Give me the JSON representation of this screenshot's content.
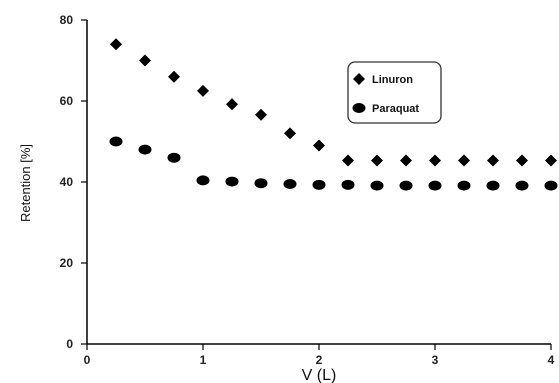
{
  "chart_data": {
    "type": "scatter",
    "xlabel": "V (L)",
    "ylabel": "Retention [%]",
    "xlim": [
      0,
      4
    ],
    "ylim": [
      0,
      80
    ],
    "xticks": [
      0,
      1,
      2,
      3,
      4
    ],
    "yticks": [
      0,
      20,
      40,
      60,
      80
    ],
    "grid": false,
    "legend": "top-right",
    "series": [
      {
        "name": "Linuron",
        "marker": "diamond",
        "color": "#000000",
        "x": [
          0.25,
          0.5,
          0.75,
          1.0,
          1.25,
          1.5,
          1.75,
          2.0,
          2.25,
          2.5,
          2.75,
          3.0,
          3.25,
          3.5,
          3.75,
          4.0
        ],
        "y": [
          74,
          70,
          66,
          62.5,
          59.2,
          56.6,
          52,
          49,
          45.3,
          45.3,
          45.3,
          45.3,
          45.3,
          45.3,
          45.3,
          45.3
        ]
      },
      {
        "name": "Paraquat",
        "marker": "circle",
        "color": "#000000",
        "x": [
          0.25,
          0.5,
          0.75,
          1.0,
          1.25,
          1.5,
          1.75,
          2.0,
          2.25,
          2.5,
          2.75,
          3.0,
          3.25,
          3.5,
          3.75,
          4.0
        ],
        "y": [
          50,
          48,
          46,
          40.4,
          40.1,
          39.7,
          39.5,
          39.3,
          39.3,
          39.1,
          39.1,
          39.1,
          39.1,
          39.1,
          39.1,
          39.1
        ]
      }
    ]
  }
}
